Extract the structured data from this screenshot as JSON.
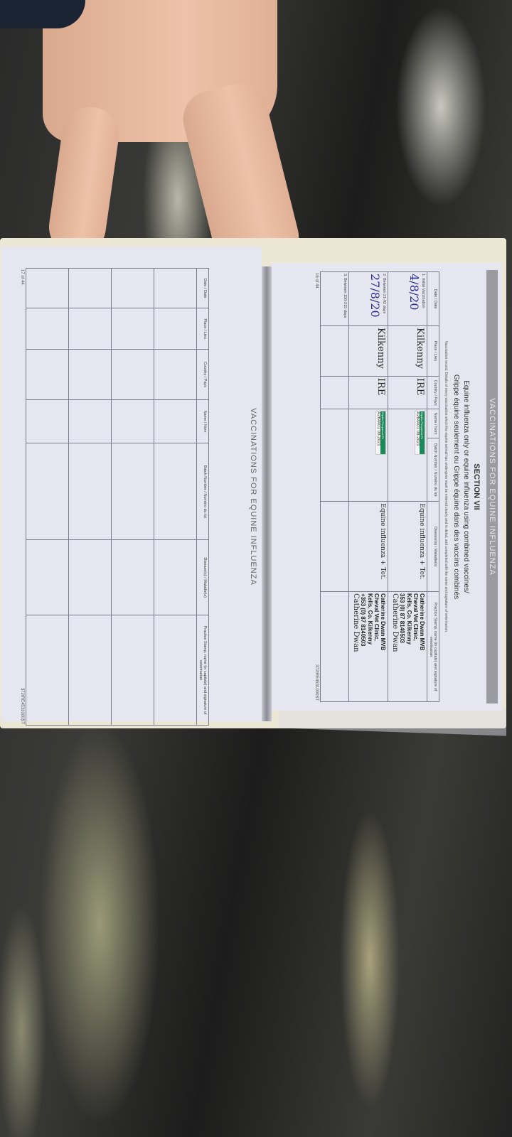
{
  "booklet": {
    "right_page": {
      "title": "VACCINATIONS FOR EQUINE INFLUENZA",
      "section": "SECTION VII",
      "subtitle_en": "Equine influenza only or equine influenza using combined vaccines/",
      "subtitle_fr": "Grippe équine seulement ou Grippe équine dans des vaccins combinés",
      "note": "Vaccination record. Details of every vaccination which the equine animal has undergone must be entered clearly and in detail, and completed with the name and signature of veterinarian.",
      "page_number": "16 of 44",
      "footer_code": "372IRE4531000ST",
      "columns": [
        "Date / Date",
        "Place / Lieu",
        "Country / Pays",
        "Name / Nom",
        "Batch Number / Numéro du lot",
        "Disease(s) / Maladie(s)",
        "Practice Stamp, name (in capitals) and signature of veterinarian"
      ],
      "rows": [
        {
          "label": "1. Initial Vaccination",
          "date": "4/8/20",
          "place": "Kilkenny",
          "country": "IRE",
          "batch": "A264A01 09-2021",
          "disease": "Equine influenza + Tet.",
          "stamp": [
            "Catherine Dwan MVB",
            "Cheval Vet Clinic,",
            "Kells, Co. Kilkenny",
            "353 (0) 87 8140503"
          ],
          "signature": "Catherine Dwan"
        },
        {
          "label": "2. Between 21-92 days",
          "date": "27/8/20",
          "place": "Kilkenny",
          "country": "IRE",
          "batch": "A264A01 09-2021",
          "disease": "Equine influenza + Tet.",
          "stamp": [
            "Catherine Dwan MVB",
            "Cheval Vet Clinic,",
            "Kells, Co. Kilkenny",
            "+353 (0) 87 8140503"
          ],
          "signature": "Catherine Dwan"
        },
        {
          "label": "3. Between 150-215 days",
          "date": "",
          "place": "",
          "country": "",
          "batch": "",
          "disease": "",
          "stamp": [],
          "signature": ""
        }
      ],
      "sticker_brand": "Equilis Prequenza Te"
    },
    "left_page": {
      "title": "VACCINATIONS FOR EQUINE INFLUENZA",
      "page_number": "17 of 44",
      "footer_code": "372IRE4531000ST",
      "columns": [
        "Date / Date",
        "Place / Lieu",
        "Country / Pays",
        "Name / Nom",
        "Batch Number / Numéro du lot",
        "Disease(s) / Maladie(s)",
        "Practice Stamp, name (in capitals) and signature of veterinarian"
      ]
    }
  }
}
